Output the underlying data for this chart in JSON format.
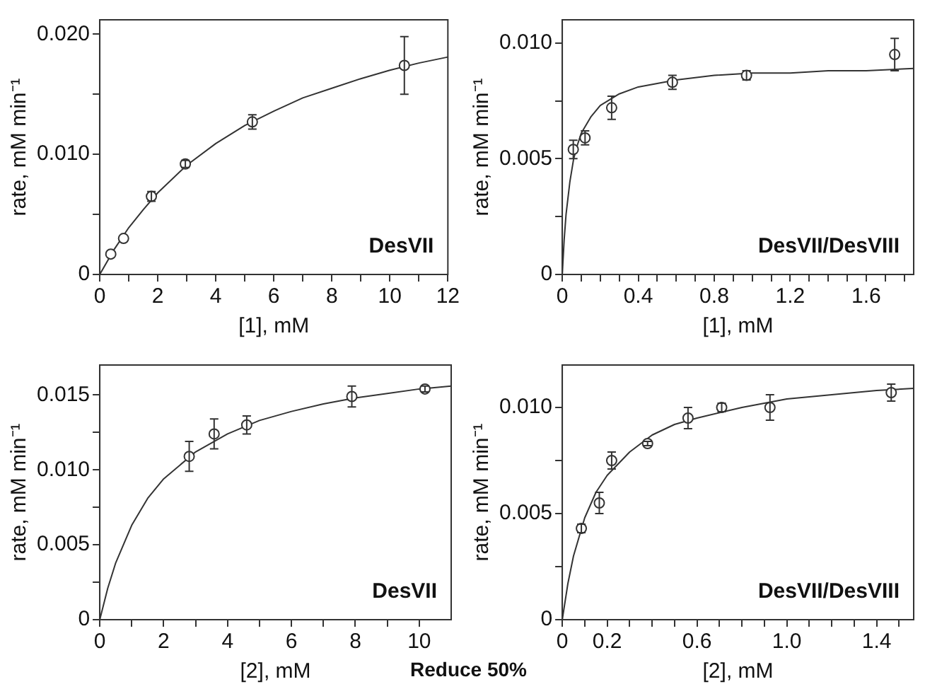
{
  "chart_data": [
    {
      "type": "scatter",
      "xlabel": "[1], mM",
      "ylabel": "rate, mM min⁻¹",
      "annotations": [
        "DesVII"
      ],
      "xlim": [
        0,
        12
      ],
      "ylim": [
        0,
        0.0212
      ],
      "xticks": [
        0,
        {
          "value": 1,
          "label": null
        },
        2,
        {
          "value": 3,
          "label": null
        },
        4,
        {
          "value": 5,
          "label": null
        },
        6,
        {
          "value": 7,
          "label": null
        },
        8,
        {
          "value": 9,
          "label": null
        },
        10,
        {
          "value": 11,
          "label": null
        },
        12
      ],
      "yticks": [
        0,
        {
          "value": 0.005,
          "label": null
        },
        {
          "value": 0.01,
          "label": "0.010"
        },
        {
          "value": 0.015,
          "label": null
        },
        {
          "value": 0.02,
          "label": "0.020"
        }
      ],
      "series": [
        {
          "marker": "circle",
          "color": "#333333",
          "x": [
            0.38,
            0.82,
            1.78,
            2.95,
            5.26,
            10.5
          ],
          "values": [
            0.0017,
            0.003,
            0.0065,
            0.0092,
            0.0127,
            0.0174
          ],
          "errors": [
            null,
            null,
            0.0004,
            0.0003,
            0.0006,
            0.0024
          ]
        },
        {
          "type": "line",
          "marker": "none",
          "color": "#333333",
          "x": [
            0,
            0.5,
            1,
            1.5,
            2,
            3,
            4,
            5,
            6,
            7,
            8,
            9,
            10,
            11,
            12
          ],
          "values": [
            0,
            0.0021,
            0.0039,
            0.0054,
            0.0068,
            0.0091,
            0.0109,
            0.0124,
            0.0136,
            0.0147,
            0.0155,
            0.0163,
            0.017,
            0.0176,
            0.0181
          ]
        }
      ]
    },
    {
      "type": "scatter",
      "xlabel": "[1], mM",
      "ylabel": "rate, mM min⁻¹",
      "annotations": [
        "DesVII/DesVIII"
      ],
      "xlim": [
        0,
        1.85
      ],
      "ylim": [
        0,
        0.011
      ],
      "xticks": [
        0,
        {
          "value": 0.1,
          "label": null
        },
        {
          "value": 0.2,
          "label": null
        },
        {
          "value": 0.3,
          "label": null
        },
        0.4,
        {
          "value": 0.5,
          "label": null
        },
        {
          "value": 0.6,
          "label": null
        },
        {
          "value": 0.7,
          "label": null
        },
        0.8,
        {
          "value": 0.9,
          "label": null
        },
        {
          "value": 1,
          "label": null
        },
        {
          "value": 1.1,
          "label": null
        },
        1.2,
        {
          "value": 1.3,
          "label": null
        },
        {
          "value": 1.4,
          "label": null
        },
        {
          "value": 1.5,
          "label": null
        },
        1.6,
        {
          "value": 1.7,
          "label": null
        },
        {
          "value": 1.8,
          "label": null
        }
      ],
      "yticks": [
        0,
        {
          "value": 0.0025,
          "label": null
        },
        0.005,
        {
          "value": 0.0075,
          "label": null
        },
        {
          "value": 0.01,
          "label": "0.010"
        }
      ],
      "series": [
        {
          "marker": "circle",
          "color": "#333333",
          "x": [
            0.058,
            0.12,
            0.26,
            0.58,
            0.97,
            1.75
          ],
          "values": [
            0.0054,
            0.0059,
            0.0072,
            0.0083,
            0.0086,
            0.0095
          ],
          "errors": [
            0.0004,
            0.0003,
            0.0005,
            0.0003,
            0.0002,
            0.0007
          ]
        },
        {
          "type": "line",
          "marker": "none",
          "color": "#333333",
          "x": [
            0,
            0.01,
            0.02,
            0.04,
            0.06,
            0.08,
            0.1,
            0.15,
            0.2,
            0.3,
            0.4,
            0.6,
            0.8,
            1,
            1.2,
            1.4,
            1.6,
            1.85
          ],
          "values": [
            0,
            0.0015,
            0.0026,
            0.004,
            0.005,
            0.0056,
            0.0061,
            0.0068,
            0.0073,
            0.0078,
            0.0081,
            0.0084,
            0.0086,
            0.0087,
            0.0087,
            0.0088,
            0.0088,
            0.0089
          ]
        }
      ]
    },
    {
      "type": "scatter",
      "xlabel": "[2], mM",
      "ylabel": "rate, mM min⁻¹",
      "annotations": [
        "DesVII"
      ],
      "xlim": [
        0,
        11
      ],
      "ylim": [
        0,
        0.017
      ],
      "xticks": [
        0,
        {
          "value": 1,
          "label": null
        },
        2,
        {
          "value": 3,
          "label": null
        },
        4,
        {
          "value": 5,
          "label": null
        },
        6,
        {
          "value": 7,
          "label": null
        },
        8,
        {
          "value": 9,
          "label": null
        },
        10
      ],
      "yticks": [
        0,
        {
          "value": 0.0025,
          "label": null
        },
        0.005,
        {
          "value": 0.0075,
          "label": null
        },
        {
          "value": 0.01,
          "label": "0.010"
        },
        {
          "value": 0.0125,
          "label": null
        },
        0.015
      ],
      "series": [
        {
          "marker": "circle",
          "color": "#333333",
          "x": [
            2.8,
            3.58,
            4.6,
            7.89,
            10.18
          ],
          "values": [
            0.0109,
            0.0124,
            0.013,
            0.0149,
            0.0154
          ],
          "errors": [
            0.001,
            0.001,
            0.0006,
            0.0007,
            0.0002
          ]
        },
        {
          "type": "line",
          "marker": "none",
          "color": "#333333",
          "x": [
            0,
            0.25,
            0.5,
            1,
            1.5,
            2,
            3,
            4,
            5,
            6,
            7,
            8,
            9,
            10,
            11
          ],
          "values": [
            0,
            0.0021,
            0.0038,
            0.0063,
            0.0081,
            0.0094,
            0.0112,
            0.0124,
            0.0133,
            0.0139,
            0.0144,
            0.0148,
            0.0151,
            0.0154,
            0.0156
          ]
        }
      ]
    },
    {
      "type": "scatter",
      "xlabel": "[2], mM",
      "ylabel": "rate, mM min⁻¹",
      "annotations": [
        "DesVII/DesVIII",
        "Reduce 50%"
      ],
      "xlim": [
        0,
        1.565
      ],
      "ylim": [
        0,
        0.012
      ],
      "xticks": [
        0,
        {
          "value": 0.1,
          "label": null
        },
        0.2,
        {
          "value": 0.3,
          "label": null
        },
        {
          "value": 0.4,
          "label": null
        },
        {
          "value": 0.5,
          "label": null
        },
        0.6,
        {
          "value": 0.7,
          "label": null
        },
        {
          "value": 0.8,
          "label": null
        },
        {
          "value": 0.9,
          "label": null
        },
        {
          "value": 1,
          "label": "1.0"
        },
        {
          "value": 1.1,
          "label": null
        },
        {
          "value": 1.2,
          "label": null
        },
        {
          "value": 1.3,
          "label": null
        },
        1.4,
        {
          "value": 1.5,
          "label": null
        }
      ],
      "yticks": [
        0,
        {
          "value": 0.0025,
          "label": null
        },
        0.005,
        {
          "value": 0.0075,
          "label": null
        },
        {
          "value": 0.01,
          "label": "0.010"
        }
      ],
      "series": [
        {
          "marker": "circle",
          "color": "#333333",
          "x": [
            0.085,
            0.165,
            0.22,
            0.38,
            0.56,
            0.71,
            0.925,
            1.465
          ],
          "values": [
            0.0043,
            0.0055,
            0.0075,
            0.0083,
            0.0095,
            0.01,
            0.01,
            0.0107
          ],
          "errors": [
            0.0002,
            0.0005,
            0.0004,
            0.0001,
            0.0005,
            0.0002,
            0.0006,
            0.0004
          ]
        },
        {
          "type": "line",
          "marker": "none",
          "color": "#333333",
          "x": [
            0,
            0.025,
            0.05,
            0.1,
            0.15,
            0.2,
            0.3,
            0.4,
            0.5,
            0.6,
            0.8,
            1,
            1.2,
            1.4,
            1.565
          ],
          "values": [
            0,
            0.0017,
            0.003,
            0.0048,
            0.006,
            0.0068,
            0.0079,
            0.0087,
            0.0092,
            0.0095,
            0.01,
            0.0104,
            0.0106,
            0.0108,
            0.0109
          ]
        }
      ]
    }
  ]
}
